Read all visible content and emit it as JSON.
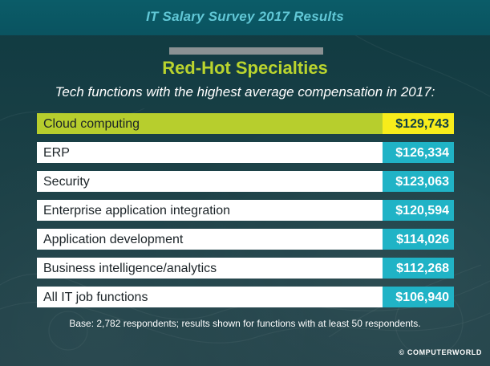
{
  "header": {
    "survey_title": "IT Salary Survey 2017 Results",
    "headline": "Red-Hot Specialties",
    "subtitle": "Tech functions with the highest average compensation in 2017:"
  },
  "chart_data": {
    "type": "table",
    "categories": [
      "Cloud computing",
      "ERP",
      "Security",
      "Enterprise application integration",
      "Application development",
      "Business intelligence/analytics",
      "All IT job functions"
    ],
    "values": [
      129743,
      126334,
      123063,
      120594,
      114026,
      112268,
      106940
    ],
    "value_labels": [
      "$129,743",
      "$126,334",
      "$123,063",
      "$120,594",
      "$114,026",
      "$112,268",
      "$106,940"
    ],
    "highlighted_index": 0,
    "title": "Red-Hot Specialties",
    "subtitle": "Tech functions with the highest average compensation in 2017:",
    "colors": {
      "highlight_row": "#b7ce2d",
      "highlight_value": "#f7ec1b",
      "highlight_value_text": "#0e3e45",
      "row": "#ffffff",
      "value": "#20b3c6",
      "row_text": "#1b2327",
      "value_text": "#ffffff"
    }
  },
  "footnote": "Base: 2,782 respondents; results shown for functions with at least 50 respondents.",
  "credit": "© COMPUTERWORLD"
}
